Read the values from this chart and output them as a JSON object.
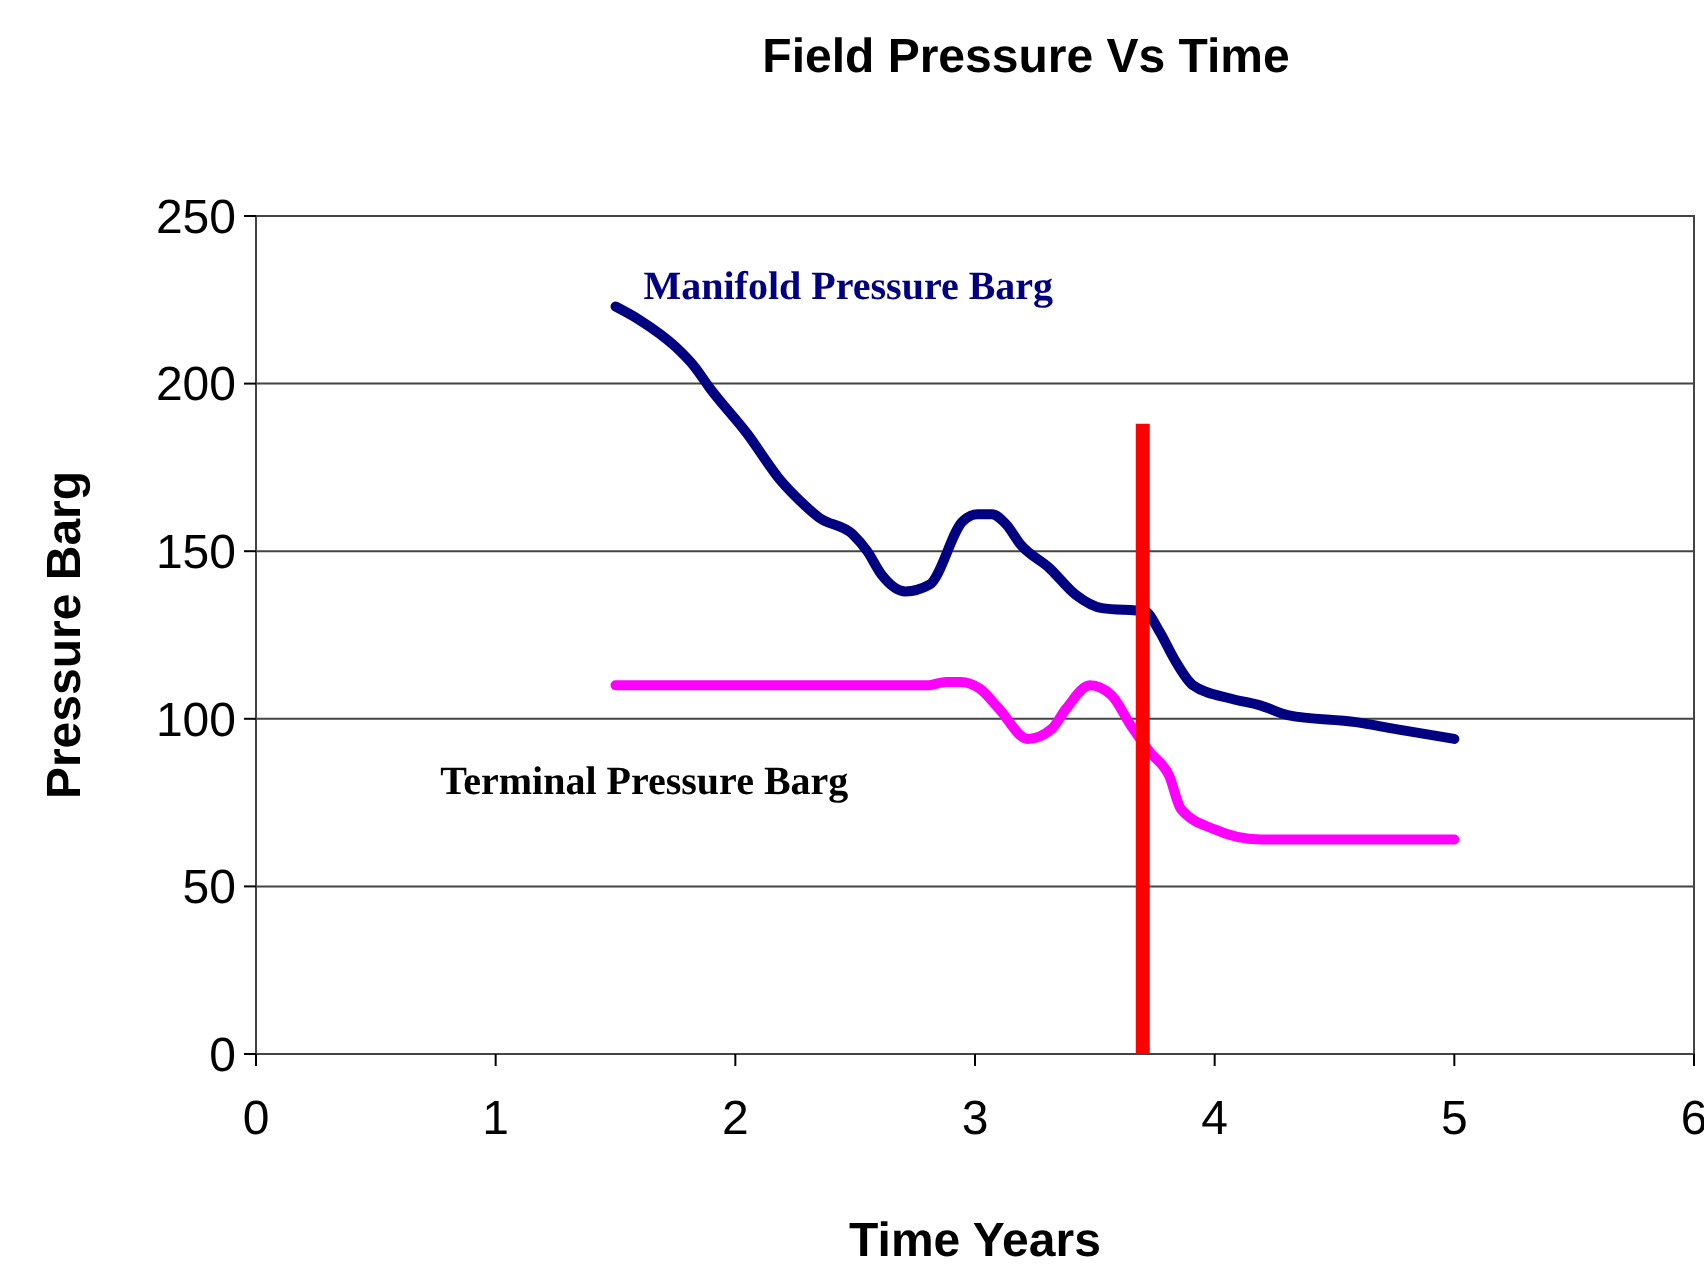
{
  "chart_data": {
    "type": "line",
    "title": "Field Pressure Vs Time",
    "xlabel": "Time Years",
    "ylabel": "Pressure Barg",
    "xlim": [
      0,
      6
    ],
    "xticks": [
      0,
      1,
      2,
      3,
      4,
      5,
      6
    ],
    "ylim": [
      0,
      250
    ],
    "yticks": [
      0,
      50,
      100,
      150,
      200,
      250
    ],
    "grid": "y",
    "legend": false,
    "marker": "none",
    "line_style": "solid",
    "series": [
      {
        "name": "Manifold Pressure Barg",
        "color": "#000080",
        "x": [
          1.5,
          1.6,
          1.75,
          1.83,
          1.89,
          2.05,
          2.19,
          2.27,
          2.35,
          2.49,
          2.55,
          2.61,
          2.71,
          2.81,
          2.95,
          3.01,
          3.07,
          3.13,
          3.19,
          3.31,
          3.42,
          3.53,
          3.71,
          3.77,
          3.83,
          3.91,
          4.07,
          4.19,
          4.31,
          4.59,
          4.75,
          5.0
        ],
        "values": [
          223,
          219,
          211,
          205,
          199,
          185,
          171,
          165,
          160,
          155,
          150,
          143,
          138,
          140,
          159,
          161,
          161,
          158,
          152,
          145,
          137,
          133,
          132,
          126,
          118,
          110,
          106,
          104,
          101,
          99,
          97,
          94
        ]
      },
      {
        "name": "Terminal Pressure Barg",
        "color": "#ff00ff",
        "x": [
          1.5,
          2.8,
          2.88,
          2.94,
          3.02,
          3.1,
          3.22,
          3.32,
          3.38,
          3.48,
          3.57,
          3.65,
          3.73,
          3.81,
          3.86,
          4.0,
          4.19,
          5.0
        ],
        "values": [
          110,
          110,
          111,
          111,
          109,
          103,
          94,
          97,
          103,
          110,
          107,
          98,
          90,
          83,
          73,
          67,
          64,
          64
        ]
      },
      {
        "color": "#ff0000",
        "x": [
          3.7,
          3.7
        ],
        "values": [
          0,
          188
        ]
      }
    ]
  }
}
